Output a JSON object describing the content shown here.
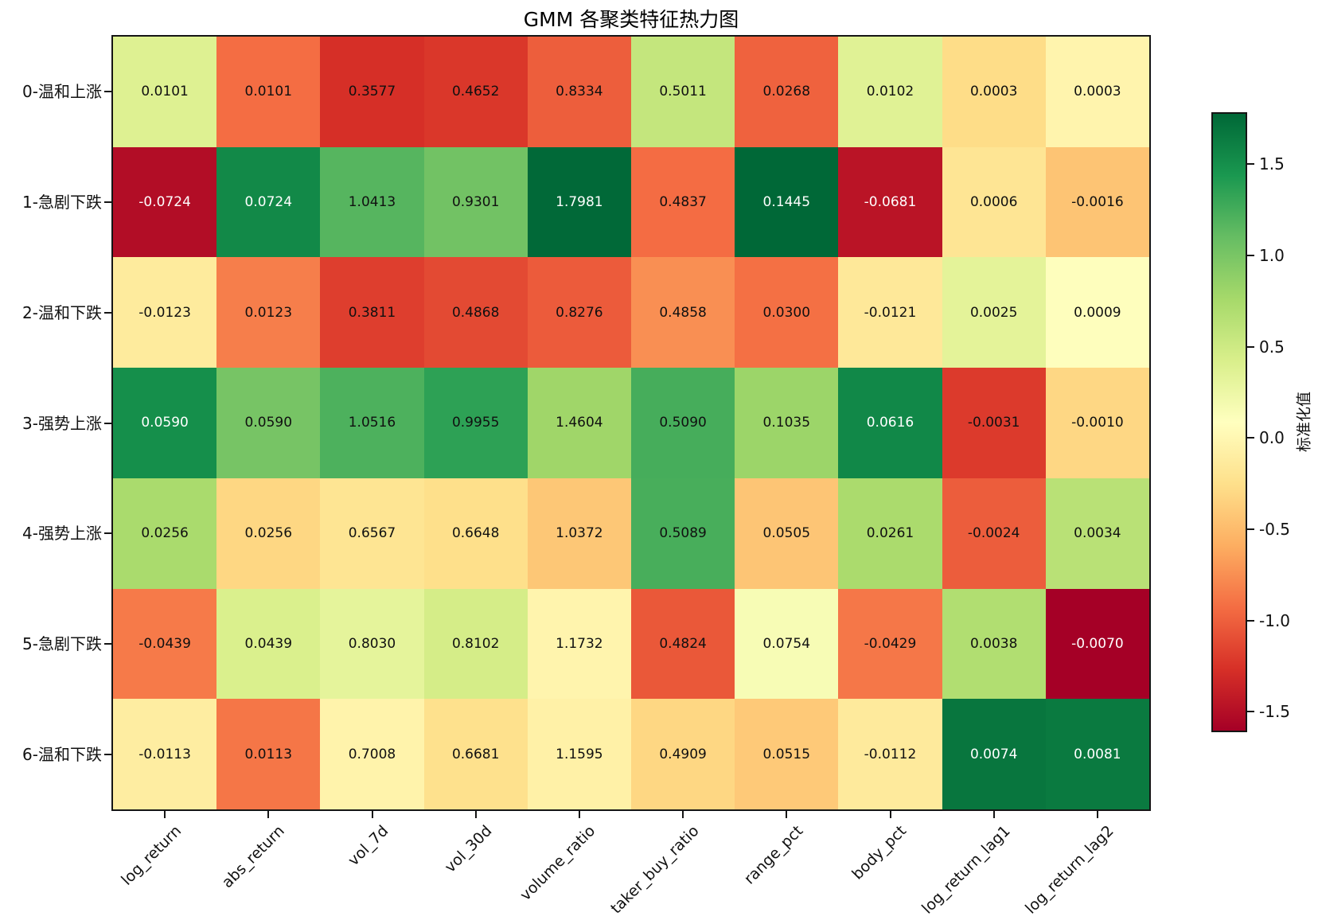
{
  "title": "GMM 各聚类特征热力图",
  "chart_data": {
    "type": "heatmap",
    "title": "GMM 各聚类特征热力图",
    "row_labels": [
      "0-温和上涨",
      "1-急剧下跌",
      "2-温和下跌",
      "3-强势上涨",
      "4-强势上涨",
      "5-急剧下跌",
      "6-温和下跌"
    ],
    "col_labels": [
      "log_return",
      "abs_return",
      "vol_7d",
      "vol_30d",
      "volume_ratio",
      "taker_buy_ratio",
      "range_pct",
      "body_pct",
      "log_return_lag1",
      "log_return_lag2"
    ],
    "values": [
      [
        0.0101,
        0.0101,
        0.3577,
        0.4652,
        0.8334,
        0.5011,
        0.0268,
        0.0102,
        0.0003,
        0.0003
      ],
      [
        -0.0724,
        0.0724,
        1.0413,
        0.9301,
        1.7981,
        0.4837,
        0.1445,
        -0.0681,
        0.0006,
        -0.0016
      ],
      [
        -0.0123,
        0.0123,
        0.3811,
        0.4868,
        0.8276,
        0.4858,
        0.03,
        -0.0121,
        0.0025,
        0.0009
      ],
      [
        0.059,
        0.059,
        1.0516,
        0.9955,
        1.4604,
        0.509,
        0.1035,
        0.0616,
        -0.0031,
        -0.001
      ],
      [
        0.0256,
        0.0256,
        0.6567,
        0.6648,
        1.0372,
        0.5089,
        0.0505,
        0.0261,
        -0.0024,
        0.0034
      ],
      [
        -0.0439,
        0.0439,
        0.803,
        0.8102,
        1.1732,
        0.4824,
        0.0754,
        -0.0429,
        0.0038,
        -0.007
      ],
      [
        -0.0113,
        0.0113,
        0.7008,
        0.6681,
        1.1595,
        0.4909,
        0.0515,
        -0.0112,
        0.0074,
        0.0081
      ]
    ],
    "value_decimals": 4,
    "color_scaling": "per-column z-score (sample std)",
    "colormap": {
      "name": "RdYlGn",
      "stops": [
        "#a50026",
        "#d73027",
        "#f46d43",
        "#fdae61",
        "#fee08b",
        "#ffffbf",
        "#d9ef8b",
        "#a6d96a",
        "#66bd63",
        "#1a9850",
        "#006837"
      ]
    },
    "colorbar": {
      "label": "标准化值",
      "ticks": [
        1.5,
        1.0,
        0.5,
        0.0,
        -0.5,
        -1.0,
        -1.5
      ]
    },
    "legend_position": "right",
    "grid": false
  }
}
